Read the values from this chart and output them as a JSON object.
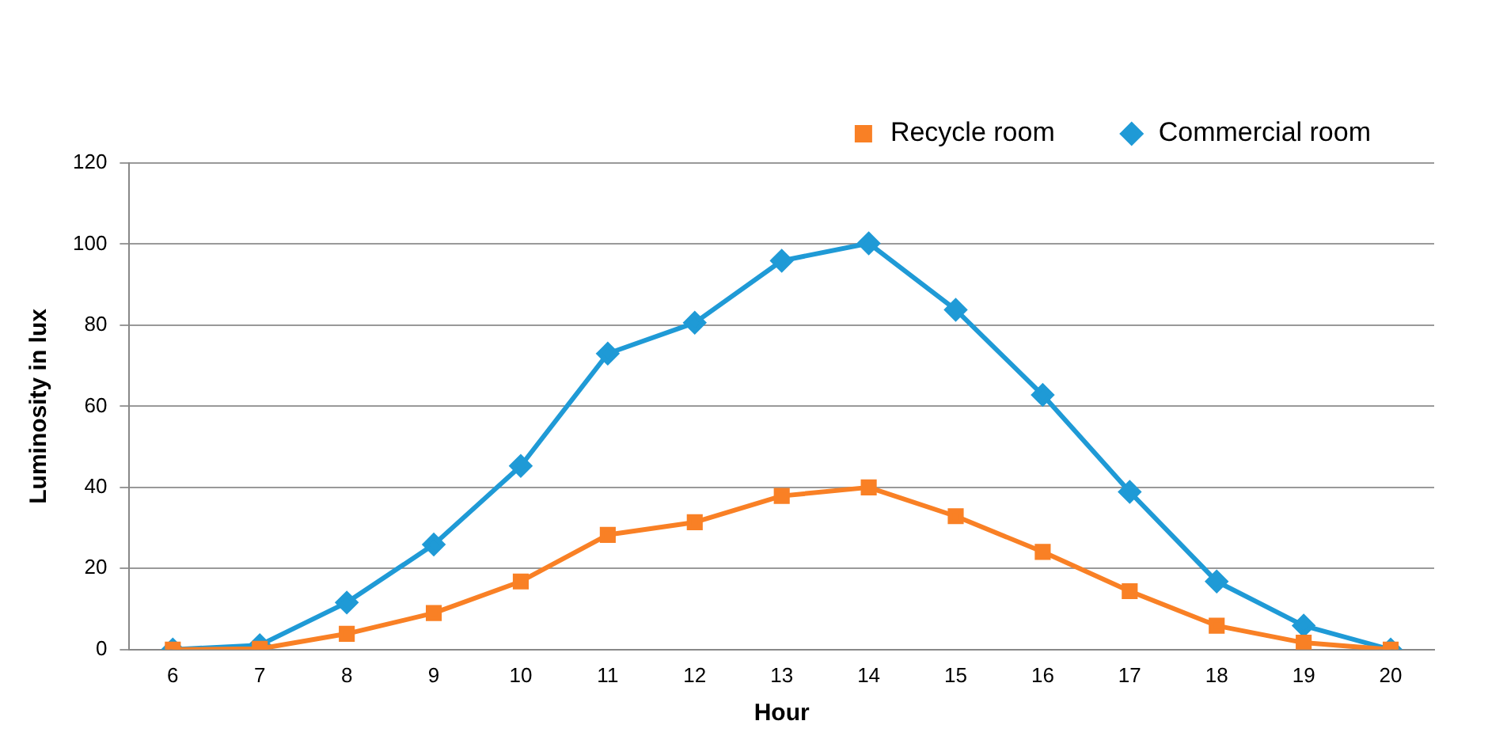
{
  "chart_data": {
    "type": "line",
    "xlabel": "Hour",
    "ylabel": "Luminosity in lux",
    "categories": [
      "6",
      "7",
      "8",
      "9",
      "10",
      "11",
      "12",
      "13",
      "14",
      "15",
      "16",
      "17",
      "18",
      "19",
      "20"
    ],
    "series": [
      {
        "name": "Commercial room",
        "color": "#1f9ad6",
        "marker": "diamond",
        "values": [
          0,
          1.1,
          11.6,
          25.9,
          45.3,
          73,
          80.6,
          95.9,
          100.2,
          83.8,
          62.8,
          38.9,
          16.8,
          5.9,
          0
        ]
      },
      {
        "name": "Recycle room",
        "color": "#f98025",
        "marker": "square",
        "values": [
          0,
          0.2,
          3.9,
          9,
          16.8,
          28.3,
          31.4,
          37.9,
          40,
          32.9,
          24.1,
          14.4,
          5.9,
          1.7,
          0
        ]
      }
    ],
    "ylim": [
      0,
      120
    ],
    "yticks": [
      0,
      20,
      40,
      60,
      80,
      100,
      120
    ],
    "grid": "y",
    "legend": "top right"
  }
}
